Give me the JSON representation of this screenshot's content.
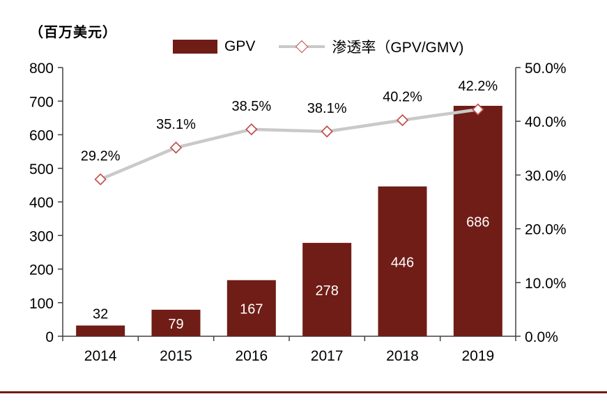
{
  "unit_label": "（百万美元）",
  "legend": {
    "bar_label": "GPV",
    "line_label": "渗透率（GPV/GMV)"
  },
  "colors": {
    "bar": "#6f1d16",
    "line": "#c9c9c9",
    "marker_stroke": "#c0504d",
    "axis": "#404040",
    "footer_rule": "#6f1d16"
  },
  "chart_data": {
    "type": "combo",
    "title": "",
    "unit": "（百万美元）",
    "categories": [
      "2014",
      "2015",
      "2016",
      "2017",
      "2018",
      "2019"
    ],
    "series": [
      {
        "name": "GPV",
        "type": "bar",
        "axis": "left",
        "values": [
          32,
          79,
          167,
          278,
          446,
          686
        ],
        "labels": [
          "32",
          "79",
          "167",
          "278",
          "446",
          "686"
        ],
        "color": "#6f1d16"
      },
      {
        "name": "渗透率（GPV/GMV)",
        "type": "line",
        "axis": "right",
        "values": [
          29.2,
          35.1,
          38.5,
          38.1,
          40.2,
          42.2
        ],
        "labels": [
          "29.2%",
          "35.1%",
          "38.5%",
          "38.1%",
          "40.2%",
          "42.2%"
        ],
        "color": "#c9c9c9",
        "marker": "diamond",
        "marker_stroke": "#c0504d"
      }
    ],
    "left_axis": {
      "min": 0,
      "max": 800,
      "step": 100,
      "tick_labels": [
        "0",
        "100",
        "200",
        "300",
        "400",
        "500",
        "600",
        "700",
        "800"
      ]
    },
    "right_axis": {
      "min": 0,
      "max": 50,
      "step": 10,
      "tick_labels": [
        "0.0%",
        "10.0%",
        "20.0%",
        "30.0%",
        "40.0%",
        "50.0%"
      ]
    },
    "grid": false,
    "legend_position": "top"
  }
}
